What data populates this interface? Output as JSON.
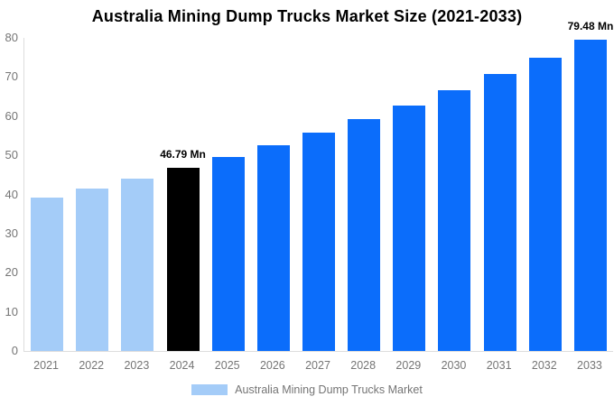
{
  "title": "Australia Mining Dump Trucks Market Size (2021-2033)",
  "legend": {
    "label": "Australia Mining Dump Trucks Market",
    "swatch_color": "#A4CCF8"
  },
  "colors": {
    "projected_bar": "#0B6DFB",
    "historical_bar": "#A4CCF8",
    "highlight_bar": "#000000",
    "axis_line": "#DDDDDD",
    "tick_label": "#757575",
    "annotation": "#000000",
    "title": "#000000",
    "background": "#FFFFFF"
  },
  "chart_data": {
    "type": "bar",
    "title": "Australia Mining Dump Trucks Market Size (2021-2033)",
    "categories": [
      "2021",
      "2022",
      "2023",
      "2024",
      "2025",
      "2026",
      "2027",
      "2028",
      "2029",
      "2030",
      "2031",
      "2032",
      "2033"
    ],
    "series": [
      {
        "name": "Australia Mining Dump Trucks Market",
        "values": [
          39.2,
          41.6,
          44.1,
          46.79,
          49.6,
          52.6,
          55.8,
          59.2,
          62.8,
          66.6,
          70.7,
          75.0,
          79.48
        ]
      }
    ],
    "unit": "Mn",
    "bar_colors": [
      "#A4CCF8",
      "#A4CCF8",
      "#A4CCF8",
      "#000000",
      "#0B6DFB",
      "#0B6DFB",
      "#0B6DFB",
      "#0B6DFB",
      "#0B6DFB",
      "#0B6DFB",
      "#0B6DFB",
      "#0B6DFB",
      "#0B6DFB"
    ],
    "annotations": [
      {
        "category": "2024",
        "text": "46.79 Mn"
      },
      {
        "category": "2033",
        "text": "79.48 Mn"
      }
    ],
    "xlabel": "",
    "ylabel": "",
    "ylim": [
      0,
      80
    ],
    "yticks": [
      0,
      10,
      20,
      30,
      40,
      50,
      60,
      70,
      80
    ],
    "grid": false,
    "legend_position": "bottom"
  }
}
